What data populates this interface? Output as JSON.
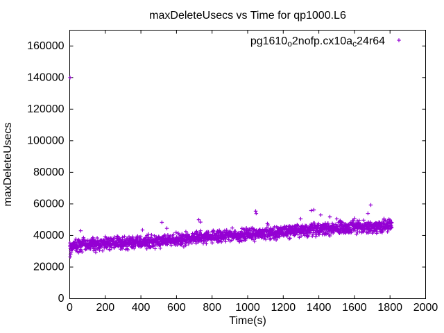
{
  "window": {
    "background": "#ffffff"
  },
  "chart_data": {
    "type": "scatter",
    "title": "maxDeleteUsecs vs Time for qp1000.L6",
    "xlabel": "Time(s)",
    "ylabel": "maxDeleteUsecs",
    "xlim": [
      0,
      2000
    ],
    "ylim": [
      0,
      170000
    ],
    "xticks": [
      0,
      200,
      400,
      600,
      800,
      1000,
      1200,
      1400,
      1600,
      1800,
      2000
    ],
    "yticks": [
      0,
      20000,
      40000,
      60000,
      80000,
      100000,
      120000,
      140000,
      160000
    ],
    "grid": false,
    "legend_position": "top-right-inside",
    "series": [
      {
        "name": "pg1610_o2nofp.cx10a_c24r64",
        "legend_parts": [
          {
            "text": "pg1610",
            "subscript": false
          },
          {
            "text": "o",
            "subscript": true
          },
          {
            "text": "2nofp.cx10a",
            "subscript": false
          },
          {
            "text": "c",
            "subscript": true
          },
          {
            "text": "24r64",
            "subscript": false
          }
        ],
        "color": "#9400d3",
        "marker": "plus",
        "band": {
          "description": "dense band of max-delete-latency samples, one per ~1s interval, rising gradually over the run",
          "x_start": 1,
          "x_end": 1810,
          "n_points": 1800,
          "seed": 42,
          "trend": [
            [
              0,
              33500
            ],
            [
              200,
              34800
            ],
            [
              400,
              35800
            ],
            [
              600,
              37200
            ],
            [
              800,
              39200
            ],
            [
              1000,
              40600
            ],
            [
              1200,
              42200
            ],
            [
              1400,
              44200
            ],
            [
              1600,
              45400
            ],
            [
              1810,
              46400
            ]
          ],
          "y_jitter": 1900
        },
        "outliers": [
          [
            2,
            140000
          ],
          [
            3,
            26500
          ],
          [
            5,
            28200
          ],
          [
            8,
            29500
          ],
          [
            62,
            43000
          ],
          [
            409,
            43500
          ],
          [
            518,
            48300
          ],
          [
            546,
            44500
          ],
          [
            725,
            50000
          ],
          [
            735,
            48500
          ],
          [
            1045,
            55400
          ],
          [
            1048,
            54000
          ],
          [
            1111,
            47500
          ],
          [
            1298,
            50500
          ],
          [
            1357,
            55800
          ],
          [
            1372,
            56200
          ],
          [
            1411,
            53000
          ],
          [
            1462,
            51800
          ],
          [
            1501,
            50500
          ],
          [
            1676,
            54000
          ],
          [
            1692,
            59300
          ],
          [
            1800,
            49800
          ]
        ]
      }
    ]
  }
}
